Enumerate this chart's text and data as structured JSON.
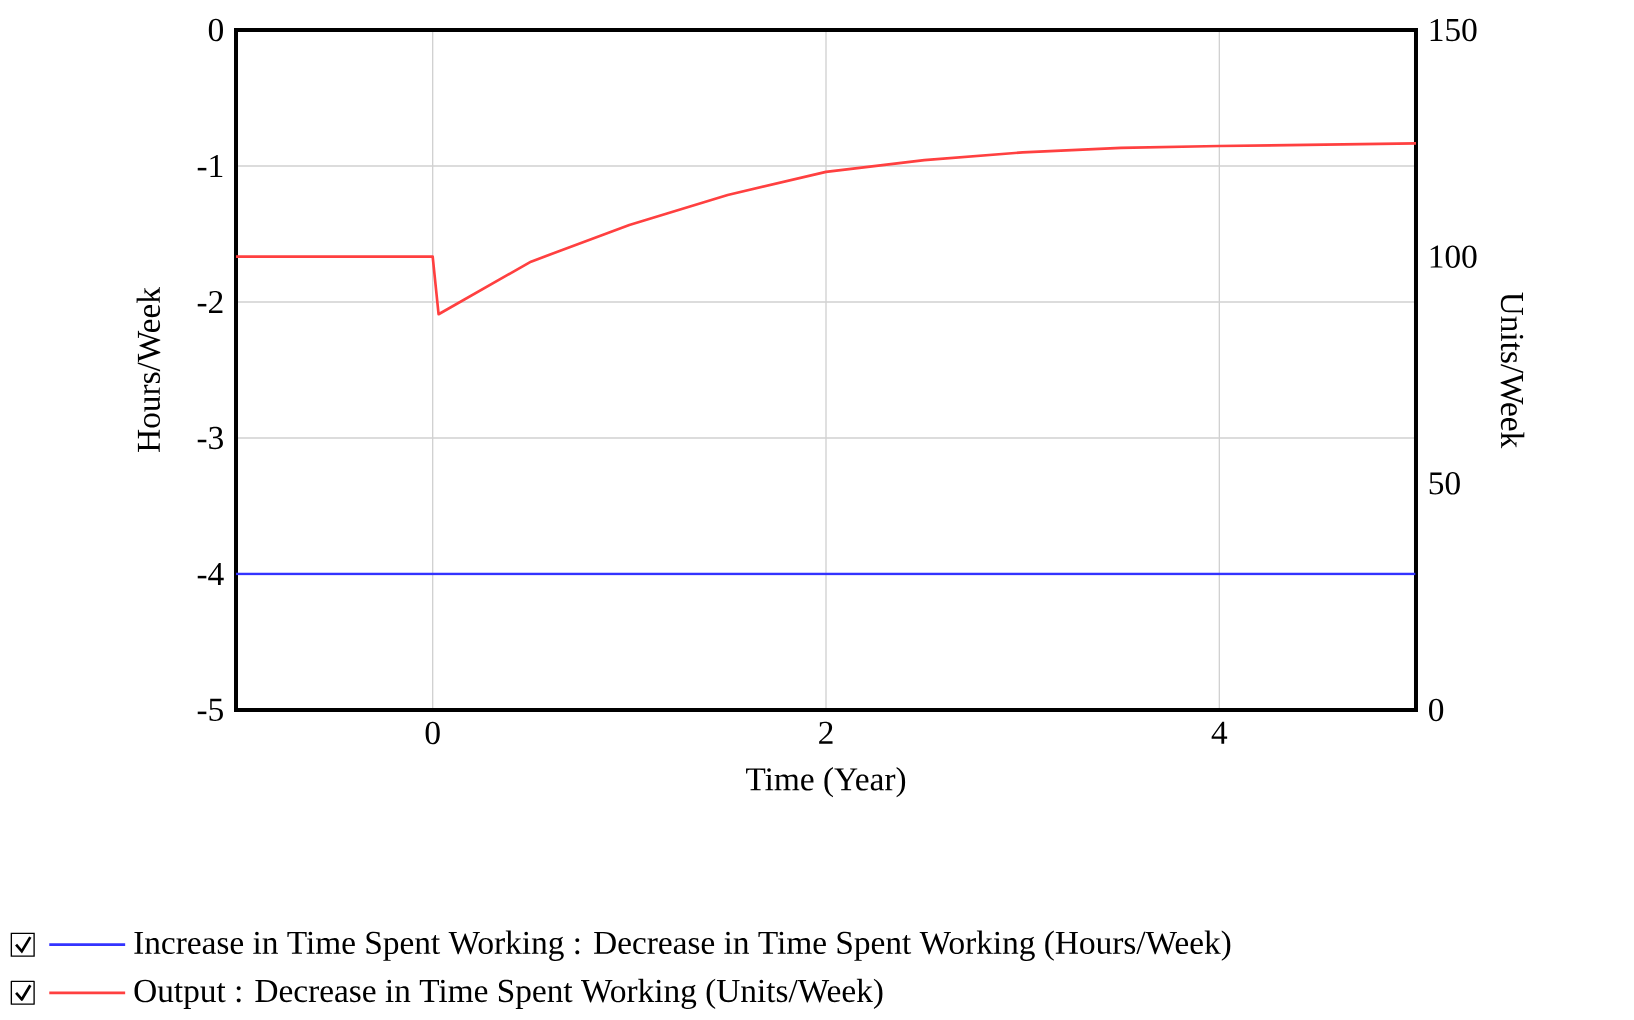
{
  "chart_data": {
    "type": "line",
    "xlabel": "Time (Year)",
    "ylabel": "Hours/Week",
    "y2label": "Units/Week",
    "xlim": [
      -1,
      5
    ],
    "xticks": [
      0,
      2,
      4
    ],
    "ylim": [
      -5,
      0
    ],
    "yticks": [
      -5,
      -4,
      -3,
      -2,
      -1,
      0
    ],
    "y2lim": [
      0,
      150
    ],
    "y2ticks": [
      0,
      50,
      100,
      150
    ],
    "grid": true,
    "legend": "bottom",
    "series": [
      {
        "name": "Increase in Time Spent Working : Decrease in Time Spent Working (Hours/Week)",
        "color": "#3333ff",
        "x": [
          -1,
          5
        ],
        "values": [
          -4,
          -4
        ]
      },
      {
        "name": "Output : Decrease in Time Spent Working (Units/Week)",
        "color": "#ff4040",
        "axis": "y2",
        "x": [
          -1,
          0,
          0.03,
          0.5,
          1,
          1.5,
          2,
          2.5,
          3,
          3.5,
          4,
          5
        ],
        "values": [
          100,
          100,
          87.3,
          98.9,
          107,
          113.6,
          118.7,
          121.3,
          123,
          124,
          124.4,
          125
        ]
      }
    ]
  }
}
